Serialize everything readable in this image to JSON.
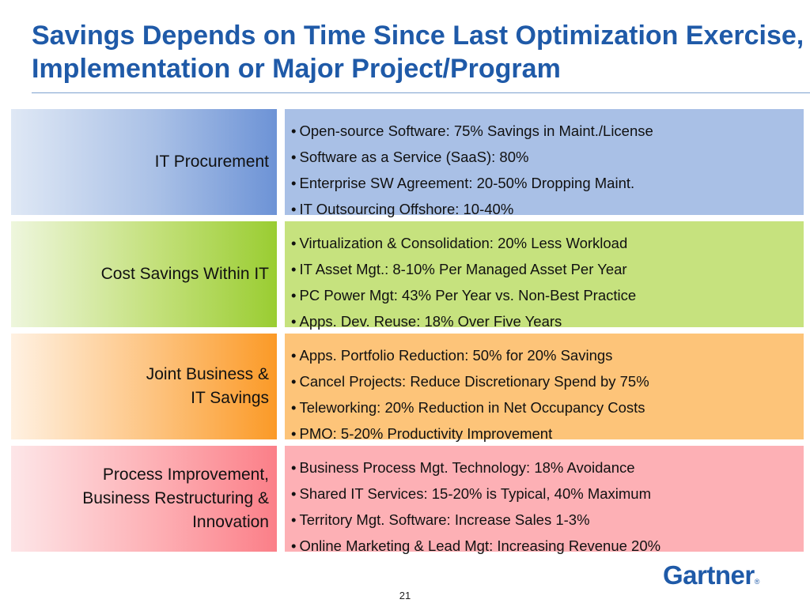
{
  "slide": {
    "title": "Savings Depends on Time Since Last Optimization Exercise, Implementation or Major Project/Program",
    "page_number": "21",
    "logo_text": "Gartner",
    "logo_mark": "®",
    "bullet": "•"
  },
  "colors": {
    "title": "#1f5aa8",
    "blue": "#a9c0e6",
    "green": "#c6e27e",
    "orange": "#fdc479",
    "pink": "#fdb0b5"
  },
  "rows": [
    {
      "label": "IT Procurement",
      "items": [
        "Open-source Software: 75% Savings in Maint./License",
        "Software as a Service (SaaS): 80%",
        "Enterprise SW Agreement: 20-50% Dropping Maint.",
        "IT Outsourcing Offshore: 10-40%"
      ]
    },
    {
      "label": "Cost Savings Within IT",
      "items": [
        "Virtualization & Consolidation: 20% Less Workload",
        "IT Asset Mgt.: 8-10% Per Managed Asset Per Year",
        "PC Power Mgt: 43% Per Year vs. Non-Best Practice",
        "Apps. Dev. Reuse: 18% Over Five Years"
      ]
    },
    {
      "label": "Joint Business &\nIT Savings",
      "items": [
        "Apps. Portfolio Reduction: 50% for 20% Savings",
        "Cancel Projects: Reduce Discretionary Spend by 75%",
        "Teleworking: 20% Reduction in Net Occupancy Costs",
        "PMO: 5-20% Productivity Improvement"
      ]
    },
    {
      "label": "Process Improvement,\nBusiness Restructuring &\nInnovation",
      "items": [
        "Business Process Mgt. Technology: 18% Avoidance",
        "Shared IT Services: 15-20% is Typical, 40% Maximum",
        "Territory Mgt. Software: Increase Sales 1-3%",
        "Online Marketing & Lead Mgt: Increasing Revenue 20%"
      ]
    }
  ]
}
